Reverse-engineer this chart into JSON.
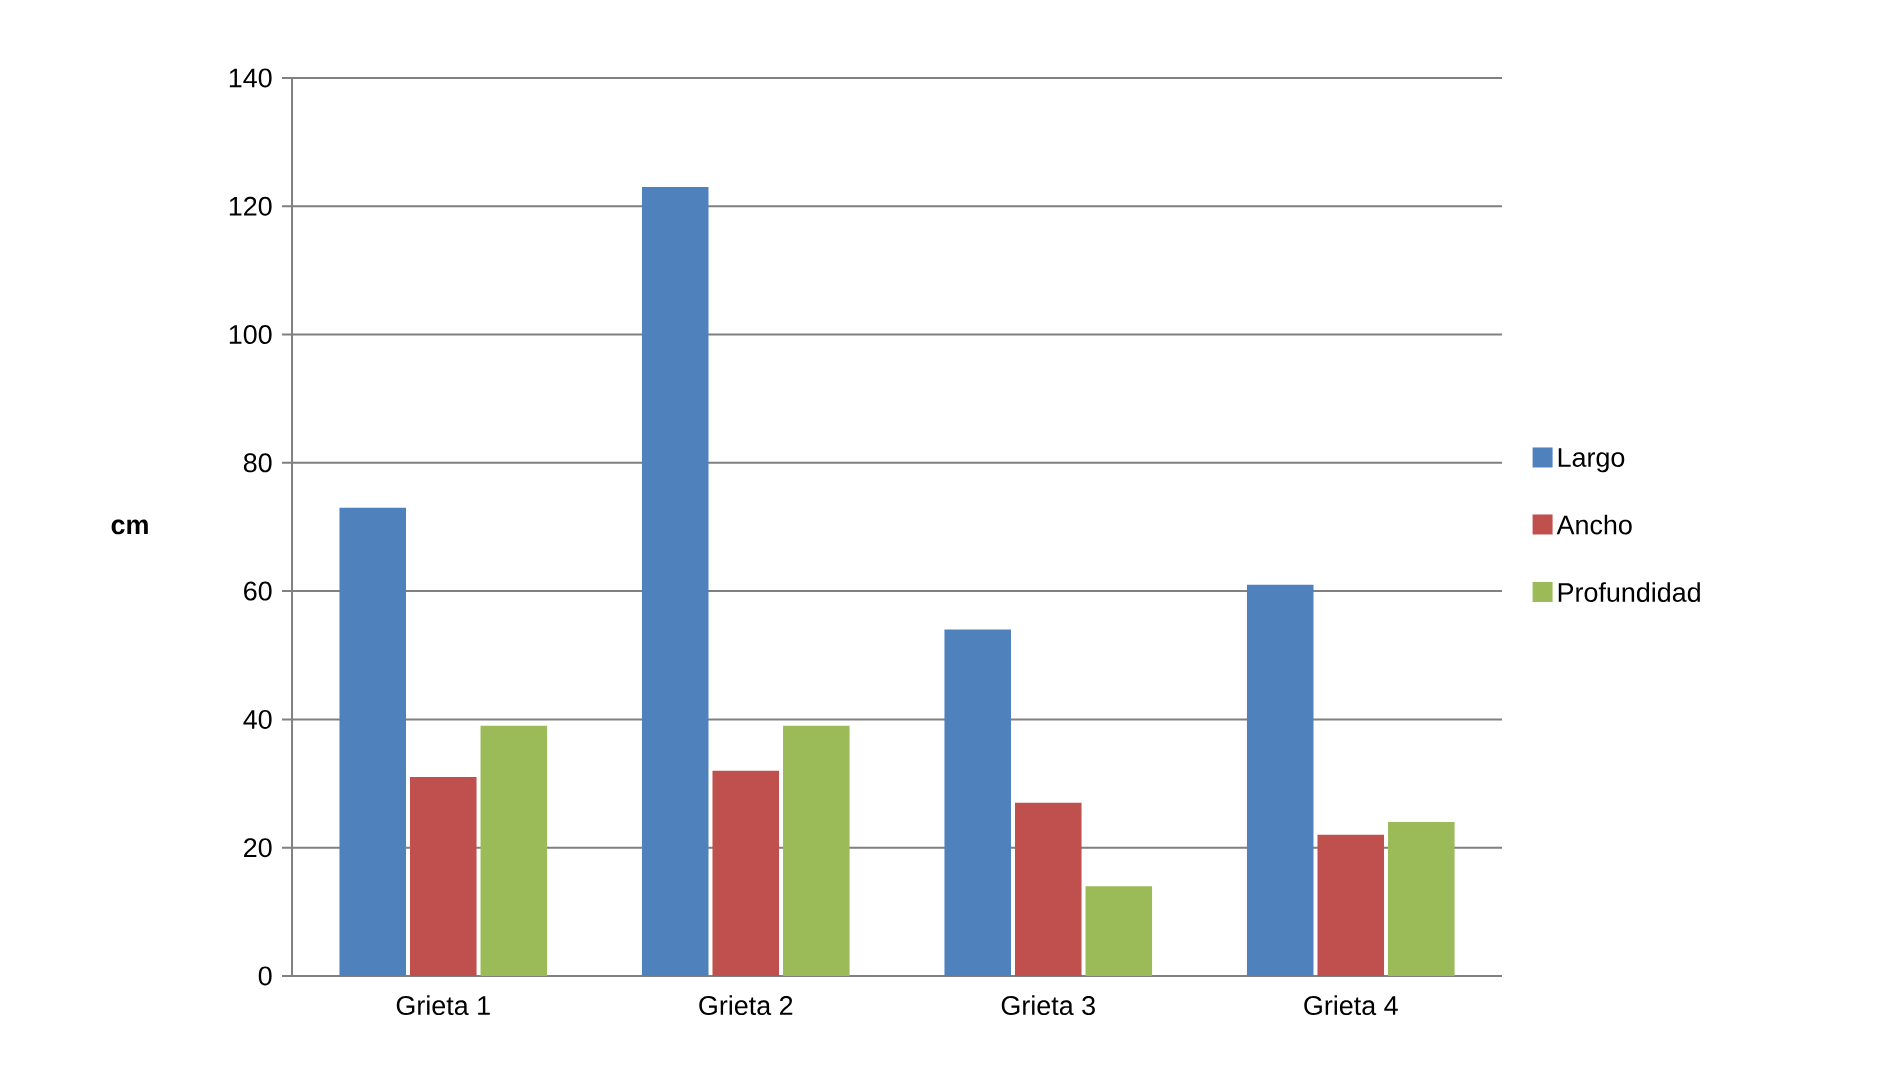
{
  "chart_data": {
    "type": "bar",
    "ylabel": "cm",
    "categories": [
      "Grieta 1",
      "Grieta 2",
      "Grieta 3",
      "Grieta 4"
    ],
    "series": [
      {
        "name": "Largo",
        "color": "#4f81bd",
        "values": [
          73,
          123,
          54,
          61
        ]
      },
      {
        "name": "Ancho",
        "color": "#c0504d",
        "values": [
          31,
          32,
          27,
          22
        ]
      },
      {
        "name": "Profundidad",
        "color": "#9bbb59",
        "values": [
          39,
          39,
          14,
          24
        ]
      }
    ],
    "ylim": [
      0,
      140
    ],
    "yticks": [
      0,
      20,
      40,
      60,
      80,
      100,
      120,
      140
    ],
    "grid": "y",
    "legend": "right"
  }
}
